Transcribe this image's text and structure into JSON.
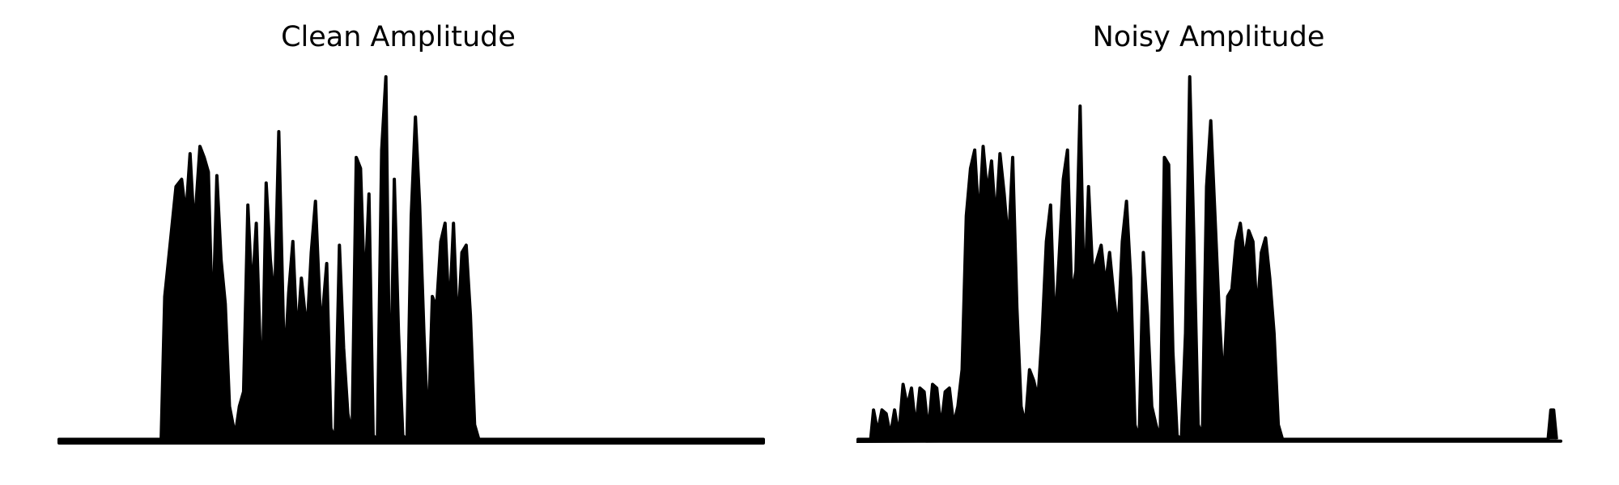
{
  "chart_data": [
    {
      "type": "area",
      "title": "Clean Amplitude",
      "xlabel": "",
      "ylabel": "",
      "axes_visible": false,
      "grid": false,
      "color": "#000000",
      "xlim": [
        0,
        1
      ],
      "ylim": [
        0,
        1
      ],
      "series": [
        {
          "envelope_x": [
            0.0,
            0.145,
            0.15,
            0.158,
            0.166,
            0.174,
            0.18,
            0.186,
            0.192,
            0.2,
            0.206,
            0.212,
            0.218,
            0.224,
            0.23,
            0.236,
            0.242,
            0.25,
            0.256,
            0.262,
            0.268,
            0.274,
            0.28,
            0.288,
            0.294,
            0.3,
            0.306,
            0.312,
            0.32,
            0.326,
            0.332,
            0.338,
            0.344,
            0.352,
            0.358,
            0.364,
            0.372,
            0.38,
            0.386,
            0.392,
            0.398,
            0.404,
            0.41,
            0.416,
            0.422,
            0.428,
            0.434,
            0.44,
            0.446,
            0.452,
            0.458,
            0.464,
            0.47,
            0.476,
            0.482,
            0.488,
            0.494,
            0.5,
            0.506,
            0.512,
            0.518,
            0.524,
            0.53,
            0.536,
            0.542,
            0.548,
            0.554,
            0.56,
            0.566,
            0.572,
            0.578,
            0.584,
            0.59,
            0.596,
            0.602,
            0.608,
            0.614,
            0.62,
            0.626,
            0.632,
            0.638,
            0.644,
            0.65,
            0.656,
            0.662,
            0.668,
            0.674,
            0.68,
            0.686,
            0.692,
            0.698,
            0.704,
            0.71,
            0.716,
            0.722,
            0.728,
            0.734,
            0.74,
            0.746,
            0.752,
            0.758,
            0.764,
            0.77,
            0.776,
            0.782,
            0.788,
            0.794,
            0.8,
            0.806,
            0.812,
            0.818,
            0.824,
            0.83,
            0.836,
            0.842,
            0.85,
            1.0
          ],
          "envelope_y": [
            0.01,
            0.01,
            0.4,
            0.55,
            0.7,
            0.72,
            0.62,
            0.79,
            0.58,
            0.81,
            0.78,
            0.74,
            0.3,
            0.73,
            0.5,
            0.38,
            0.1,
            0.02,
            0.1,
            0.14,
            0.65,
            0.4,
            0.6,
            0.1,
            0.71,
            0.5,
            0.38,
            0.85,
            0.2,
            0.41,
            0.55,
            0.28,
            0.45,
            0.3,
            0.52,
            0.66,
            0.3,
            0.49,
            0.04,
            0.01,
            0.54,
            0.26,
            0.08,
            0.02,
            0.78,
            0.75,
            0.4,
            0.68,
            0.02,
            0.01,
            0.8,
            1.0,
            0.05,
            0.72,
            0.3,
            0.02,
            0.01,
            0.62,
            0.89,
            0.65,
            0.3,
            0.02,
            0.4,
            0.37,
            0.55,
            0.6,
            0.34,
            0.6,
            0.3,
            0.52,
            0.54,
            0.35,
            0.05,
            0.01,
            0.01,
            0.01,
            0.01,
            0.01,
            0.01,
            0.01,
            0.01,
            0.01,
            0.01,
            0.01,
            0.01,
            0.01,
            0.01,
            0.01,
            0.01,
            0.01,
            0.01,
            0.01,
            0.01,
            0.01,
            0.01,
            0.01,
            0.01,
            0.01,
            0.01,
            0.01,
            0.01,
            0.01,
            0.01,
            0.01,
            0.01,
            0.01,
            0.01,
            0.01,
            0.01,
            0.01,
            0.01,
            0.01,
            0.01,
            0.01,
            0.01,
            0.01,
            0.01
          ]
        }
      ]
    },
    {
      "type": "area",
      "title": "Noisy Amplitude",
      "xlabel": "",
      "ylabel": "",
      "axes_visible": false,
      "grid": false,
      "color": "#000000",
      "xlim": [
        0,
        1
      ],
      "ylim": [
        0,
        1
      ],
      "series": [
        {
          "envelope_x": [
            0.0,
            0.018,
            0.022,
            0.028,
            0.034,
            0.04,
            0.046,
            0.052,
            0.058,
            0.064,
            0.07,
            0.076,
            0.082,
            0.088,
            0.094,
            0.1,
            0.106,
            0.112,
            0.118,
            0.124,
            0.13,
            0.136,
            0.142,
            0.148,
            0.154,
            0.16,
            0.166,
            0.172,
            0.178,
            0.184,
            0.19,
            0.196,
            0.202,
            0.208,
            0.214,
            0.22,
            0.226,
            0.232,
            0.238,
            0.244,
            0.25,
            0.256,
            0.262,
            0.268,
            0.274,
            0.28,
            0.286,
            0.292,
            0.298,
            0.304,
            0.31,
            0.316,
            0.322,
            0.328,
            0.334,
            0.34,
            0.346,
            0.352,
            0.358,
            0.364,
            0.37,
            0.376,
            0.382,
            0.388,
            0.394,
            0.4,
            0.406,
            0.412,
            0.418,
            0.424,
            0.43,
            0.436,
            0.442,
            0.448,
            0.454,
            0.46,
            0.466,
            0.472,
            0.478,
            0.484,
            0.49,
            0.496,
            0.502,
            0.508,
            0.514,
            0.52,
            0.526,
            0.532,
            0.538,
            0.544,
            0.55,
            0.556,
            0.562,
            0.568,
            0.574,
            0.58,
            0.586,
            0.592,
            0.598,
            0.604,
            0.61,
            0.616,
            0.622,
            0.628,
            0.634,
            0.64,
            0.646,
            0.652,
            0.658,
            0.664,
            0.67,
            0.676,
            0.682,
            0.688,
            0.694,
            0.7,
            0.706,
            0.712,
            0.718,
            0.724,
            0.73,
            0.736,
            0.742,
            0.748,
            0.754,
            0.76,
            0.766,
            0.772,
            0.778,
            0.784,
            0.79,
            0.796,
            0.802,
            0.808,
            0.814,
            0.82,
            0.826,
            0.832,
            0.838,
            0.844,
            0.85,
            0.856,
            0.862,
            0.868,
            0.874,
            0.88,
            0.886,
            0.892,
            0.898,
            0.904,
            0.91,
            0.916,
            0.922,
            0.928,
            0.934,
            0.94,
            0.946,
            0.952,
            0.958,
            0.964,
            0.97,
            0.976,
            0.982,
            0.986,
            0.99,
            0.994,
            1.0
          ],
          "envelope_y": [
            0.01,
            0.01,
            0.09,
            0.03,
            0.09,
            0.08,
            0.02,
            0.09,
            0.02,
            0.16,
            0.1,
            0.15,
            0.04,
            0.15,
            0.14,
            0.03,
            0.16,
            0.15,
            0.04,
            0.14,
            0.15,
            0.05,
            0.1,
            0.2,
            0.62,
            0.75,
            0.8,
            0.6,
            0.81,
            0.68,
            0.77,
            0.6,
            0.79,
            0.68,
            0.54,
            0.78,
            0.37,
            0.1,
            0.05,
            0.2,
            0.17,
            0.12,
            0.3,
            0.55,
            0.65,
            0.3,
            0.5,
            0.72,
            0.8,
            0.4,
            0.47,
            0.92,
            0.37,
            0.7,
            0.46,
            0.5,
            0.54,
            0.43,
            0.52,
            0.4,
            0.3,
            0.55,
            0.66,
            0.45,
            0.05,
            0.01,
            0.52,
            0.35,
            0.1,
            0.05,
            0.01,
            0.78,
            0.76,
            0.25,
            0.02,
            0.01,
            0.3,
            1.0,
            0.55,
            0.05,
            0.02,
            0.7,
            0.88,
            0.62,
            0.35,
            0.15,
            0.4,
            0.42,
            0.55,
            0.6,
            0.5,
            0.58,
            0.55,
            0.35,
            0.52,
            0.56,
            0.45,
            0.3,
            0.05,
            0.01,
            0.01,
            0.01,
            0.01,
            0.01,
            0.01,
            0.01,
            0.01,
            0.01,
            0.01,
            0.01,
            0.01,
            0.01,
            0.01,
            0.01,
            0.01,
            0.01,
            0.01,
            0.01,
            0.01,
            0.01,
            0.01,
            0.01,
            0.01,
            0.01,
            0.01,
            0.01,
            0.01,
            0.01,
            0.01,
            0.01,
            0.01,
            0.01,
            0.01,
            0.01,
            0.01,
            0.01,
            0.01,
            0.01,
            0.01,
            0.01,
            0.01,
            0.01,
            0.01,
            0.01,
            0.01,
            0.01,
            0.01,
            0.01,
            0.01,
            0.01,
            0.01,
            0.01,
            0.01,
            0.01,
            0.01,
            0.01,
            0.01,
            0.01,
            0.01,
            0.01,
            0.01,
            0.01,
            0.01,
            0.09,
            0.09,
            0.01
          ]
        }
      ]
    }
  ]
}
